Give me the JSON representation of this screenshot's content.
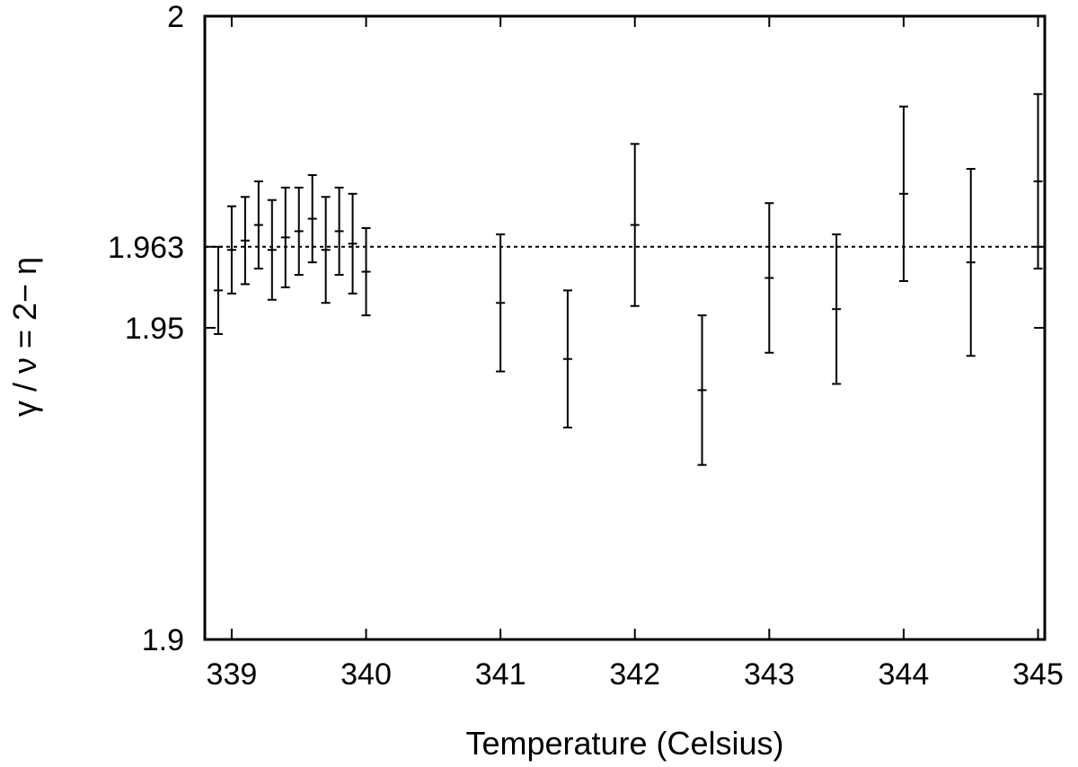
{
  "chart_data": {
    "type": "scatter",
    "xlabel": "Temperature (Celsius)",
    "ylabel": "γ / ν = 2− η",
    "xlim": [
      338.8,
      345.05
    ],
    "ylim": [
      1.9,
      2.0
    ],
    "x_ticks": [
      339,
      340,
      341,
      342,
      343,
      344,
      345
    ],
    "y_ticks": [
      1.9,
      1.95,
      1.963,
      2
    ],
    "y_tick_labels": [
      "1.9",
      "1.95",
      "1.963",
      "2"
    ],
    "reference_line": {
      "y": 1.963,
      "style": "dotted"
    },
    "grid": false,
    "series": [
      {
        "points": [
          {
            "x": 338.9,
            "y": 1.956,
            "err": 0.007
          },
          {
            "x": 339.0,
            "y": 1.9625,
            "err": 0.007
          },
          {
            "x": 339.1,
            "y": 1.964,
            "err": 0.007
          },
          {
            "x": 339.2,
            "y": 1.9665,
            "err": 0.007
          },
          {
            "x": 339.3,
            "y": 1.9625,
            "err": 0.008
          },
          {
            "x": 339.4,
            "y": 1.9645,
            "err": 0.008
          },
          {
            "x": 339.5,
            "y": 1.9655,
            "err": 0.007
          },
          {
            "x": 339.6,
            "y": 1.9675,
            "err": 0.007
          },
          {
            "x": 339.7,
            "y": 1.9625,
            "err": 0.0085
          },
          {
            "x": 339.8,
            "y": 1.9655,
            "err": 0.007
          },
          {
            "x": 339.9,
            "y": 1.9635,
            "err": 0.008
          },
          {
            "x": 340.0,
            "y": 1.959,
            "err": 0.007
          },
          {
            "x": 341.0,
            "y": 1.954,
            "err": 0.011
          },
          {
            "x": 341.5,
            "y": 1.945,
            "err": 0.011
          },
          {
            "x": 342.0,
            "y": 1.9665,
            "err": 0.013
          },
          {
            "x": 342.5,
            "y": 1.94,
            "err": 0.012
          },
          {
            "x": 343.0,
            "y": 1.958,
            "err": 0.012
          },
          {
            "x": 343.5,
            "y": 1.953,
            "err": 0.012
          },
          {
            "x": 344.0,
            "y": 1.9715,
            "err": 0.014
          },
          {
            "x": 344.5,
            "y": 1.9605,
            "err": 0.015
          },
          {
            "x": 345.0,
            "y": 1.9735,
            "err": 0.014
          }
        ]
      }
    ]
  }
}
